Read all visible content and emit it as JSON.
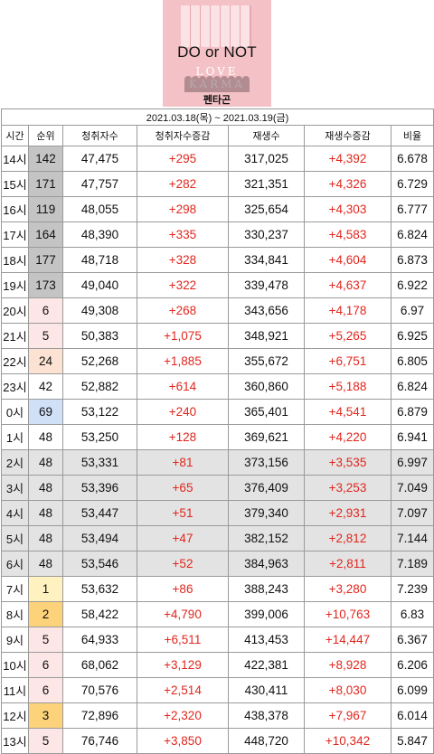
{
  "album": {
    "title": "DO or NOT",
    "logo_text": "LOVE KARMA",
    "artist": "펜타곤"
  },
  "table": {
    "date_range": "2021.03.18(목) ~ 2021.03.19(금)",
    "headers": [
      "시간",
      "순위",
      "청취자수",
      "청취자수증감",
      "재생수",
      "재생수증감",
      "비율"
    ],
    "rows": [
      {
        "hour": "14시",
        "rank": "142",
        "listeners": "47,475",
        "listeners_change": "+295",
        "plays": "317,025",
        "plays_change": "+4,392",
        "ratio": "6.678",
        "rank_color": "gray",
        "row_shade": false
      },
      {
        "hour": "15시",
        "rank": "171",
        "listeners": "47,757",
        "listeners_change": "+282",
        "plays": "321,351",
        "plays_change": "+4,326",
        "ratio": "6.729",
        "rank_color": "gray",
        "row_shade": false
      },
      {
        "hour": "16시",
        "rank": "119",
        "listeners": "48,055",
        "listeners_change": "+298",
        "plays": "325,654",
        "plays_change": "+4,303",
        "ratio": "6.777",
        "rank_color": "gray",
        "row_shade": false
      },
      {
        "hour": "17시",
        "rank": "164",
        "listeners": "48,390",
        "listeners_change": "+335",
        "plays": "330,237",
        "plays_change": "+4,583",
        "ratio": "6.824",
        "rank_color": "gray",
        "row_shade": false
      },
      {
        "hour": "18시",
        "rank": "177",
        "listeners": "48,718",
        "listeners_change": "+328",
        "plays": "334,841",
        "plays_change": "+4,604",
        "ratio": "6.873",
        "rank_color": "gray",
        "row_shade": false
      },
      {
        "hour": "19시",
        "rank": "173",
        "listeners": "49,040",
        "listeners_change": "+322",
        "plays": "339,478",
        "plays_change": "+4,637",
        "ratio": "6.922",
        "rank_color": "gray",
        "row_shade": false
      },
      {
        "hour": "20시",
        "rank": "6",
        "listeners": "49,308",
        "listeners_change": "+268",
        "plays": "343,656",
        "plays_change": "+4,178",
        "ratio": "6.97",
        "rank_color": "pink",
        "row_shade": false
      },
      {
        "hour": "21시",
        "rank": "5",
        "listeners": "50,383",
        "listeners_change": "+1,075",
        "plays": "348,921",
        "plays_change": "+5,265",
        "ratio": "6.925",
        "rank_color": "pink",
        "row_shade": false
      },
      {
        "hour": "22시",
        "rank": "24",
        "listeners": "52,268",
        "listeners_change": "+1,885",
        "plays": "355,672",
        "plays_change": "+6,751",
        "ratio": "6.805",
        "rank_color": "peach",
        "row_shade": false
      },
      {
        "hour": "23시",
        "rank": "42",
        "listeners": "52,882",
        "listeners_change": "+614",
        "plays": "360,860",
        "plays_change": "+5,188",
        "ratio": "6.824",
        "rank_color": "none",
        "row_shade": false
      },
      {
        "hour": "0시",
        "rank": "69",
        "listeners": "53,122",
        "listeners_change": "+240",
        "plays": "365,401",
        "plays_change": "+4,541",
        "ratio": "6.879",
        "rank_color": "blue",
        "row_shade": false
      },
      {
        "hour": "1시",
        "rank": "48",
        "listeners": "53,250",
        "listeners_change": "+128",
        "plays": "369,621",
        "plays_change": "+4,220",
        "ratio": "6.941",
        "rank_color": "none",
        "row_shade": false
      },
      {
        "hour": "2시",
        "rank": "48",
        "listeners": "53,331",
        "listeners_change": "+81",
        "plays": "373,156",
        "plays_change": "+3,535",
        "ratio": "6.997",
        "rank_color": "none",
        "row_shade": true
      },
      {
        "hour": "3시",
        "rank": "48",
        "listeners": "53,396",
        "listeners_change": "+65",
        "plays": "376,409",
        "plays_change": "+3,253",
        "ratio": "7.049",
        "rank_color": "none",
        "row_shade": true
      },
      {
        "hour": "4시",
        "rank": "48",
        "listeners": "53,447",
        "listeners_change": "+51",
        "plays": "379,340",
        "plays_change": "+2,931",
        "ratio": "7.097",
        "rank_color": "none",
        "row_shade": true
      },
      {
        "hour": "5시",
        "rank": "48",
        "listeners": "53,494",
        "listeners_change": "+47",
        "plays": "382,152",
        "plays_change": "+2,812",
        "ratio": "7.144",
        "rank_color": "none",
        "row_shade": true
      },
      {
        "hour": "6시",
        "rank": "48",
        "listeners": "53,546",
        "listeners_change": "+52",
        "plays": "384,963",
        "plays_change": "+2,811",
        "ratio": "7.189",
        "rank_color": "none",
        "row_shade": true
      },
      {
        "hour": "7시",
        "rank": "1",
        "listeners": "53,632",
        "listeners_change": "+86",
        "plays": "388,243",
        "plays_change": "+3,280",
        "ratio": "7.239",
        "rank_color": "yellow",
        "row_shade": false
      },
      {
        "hour": "8시",
        "rank": "2",
        "listeners": "58,422",
        "listeners_change": "+4,790",
        "plays": "399,006",
        "plays_change": "+10,763",
        "ratio": "6.83",
        "rank_color": "orange",
        "row_shade": false
      },
      {
        "hour": "9시",
        "rank": "5",
        "listeners": "64,933",
        "listeners_change": "+6,511",
        "plays": "413,453",
        "plays_change": "+14,447",
        "ratio": "6.367",
        "rank_color": "pink",
        "row_shade": false
      },
      {
        "hour": "10시",
        "rank": "6",
        "listeners": "68,062",
        "listeners_change": "+3,129",
        "plays": "422,381",
        "plays_change": "+8,928",
        "ratio": "6.206",
        "rank_color": "pink",
        "row_shade": false
      },
      {
        "hour": "11시",
        "rank": "6",
        "listeners": "70,576",
        "listeners_change": "+2,514",
        "plays": "430,411",
        "plays_change": "+8,030",
        "ratio": "6.099",
        "rank_color": "pink",
        "row_shade": false
      },
      {
        "hour": "12시",
        "rank": "3",
        "listeners": "72,896",
        "listeners_change": "+2,320",
        "plays": "438,378",
        "plays_change": "+7,967",
        "ratio": "6.014",
        "rank_color": "orange",
        "row_shade": false
      },
      {
        "hour": "13시",
        "rank": "5",
        "listeners": "76,746",
        "listeners_change": "+3,850",
        "plays": "448,720",
        "plays_change": "+10,342",
        "ratio": "5.847",
        "rank_color": "pink",
        "row_shade": false
      }
    ]
  }
}
